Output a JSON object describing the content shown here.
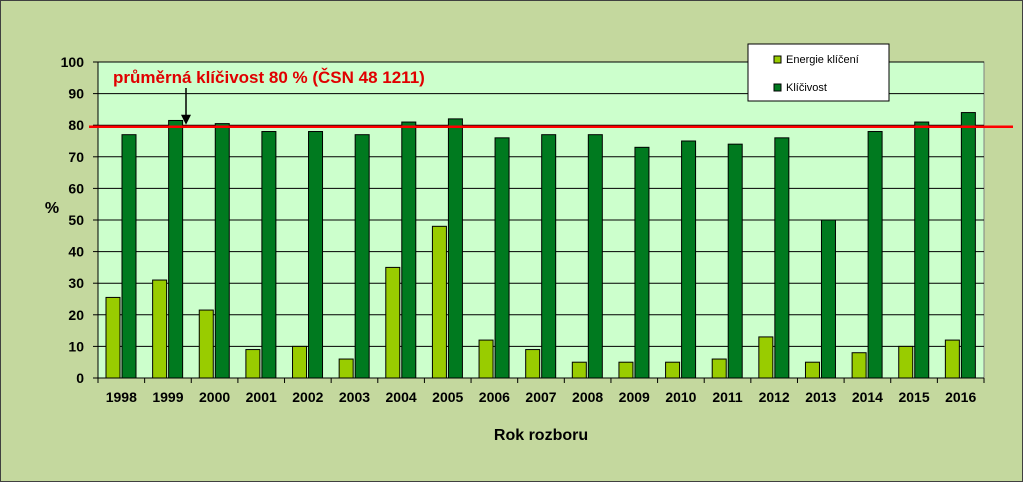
{
  "chart_data": {
    "type": "bar",
    "xlabel": "Rok rozboru",
    "ylabel": "%",
    "ylim": [
      0,
      100
    ],
    "yticks": [
      0,
      10,
      20,
      30,
      40,
      50,
      60,
      70,
      80,
      90,
      100
    ],
    "grid": true,
    "legend_position": "top-right",
    "categories": [
      "1998",
      "1999",
      "2000",
      "2001",
      "2002",
      "2003",
      "2004",
      "2005",
      "2006",
      "2007",
      "2008",
      "2009",
      "2010",
      "2011",
      "2012",
      "2013",
      "2014",
      "2015",
      "2016"
    ],
    "series": [
      {
        "name": "Energie klíčení",
        "color": "#99cc00",
        "values": [
          25.5,
          31,
          21.5,
          9,
          10,
          6,
          35,
          48,
          12,
          9,
          5,
          5,
          5,
          6,
          13,
          5,
          8,
          10,
          12
        ]
      },
      {
        "name": "Klíčivost",
        "color": "#007a1f",
        "values": [
          77,
          81.5,
          80.5,
          78,
          78,
          77,
          81,
          82,
          76,
          77,
          77,
          73,
          75,
          74,
          76,
          50,
          78,
          81,
          84
        ]
      }
    ],
    "reference_line": {
      "value": 79.5,
      "color": "#ff0000",
      "label": "průměrná klíčivost 80 % (ČSN 48 1211)"
    },
    "plot_background": "#ccffcc",
    "gridline_color": "#000000"
  }
}
